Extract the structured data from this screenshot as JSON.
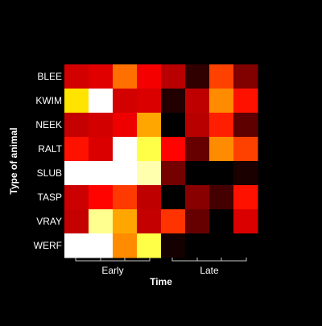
{
  "chart_data": {
    "type": "heatmap",
    "title": "",
    "xlabel": "Time",
    "ylabel": "Type of animal",
    "rows": [
      "BLEE",
      "KWIM",
      "NEEK",
      "RALT",
      "SLUB",
      "TASP",
      "VRAY",
      "WERF"
    ],
    "column_groups": [
      {
        "label": "Early",
        "columns": 4
      },
      {
        "label": "Late",
        "columns": 4
      }
    ],
    "colormap": "heat",
    "colorscale_range": [
      0,
      1
    ],
    "values": [
      [
        0.31,
        0.33,
        0.54,
        0.36,
        0.27,
        0.07,
        0.47,
        0.19
      ],
      [
        0.71,
        1.0,
        0.31,
        0.32,
        0.05,
        0.28,
        0.58,
        0.4
      ],
      [
        0.29,
        0.31,
        0.35,
        0.62,
        0.0,
        0.27,
        0.42,
        0.14
      ],
      [
        0.4,
        0.32,
        1.0,
        0.82,
        0.38,
        0.15,
        0.58,
        0.47
      ],
      [
        1.0,
        1.0,
        1.0,
        0.92,
        0.17,
        0.0,
        0.0,
        0.04
      ],
      [
        0.3,
        0.38,
        0.46,
        0.28,
        0.0,
        0.2,
        0.1,
        0.4
      ],
      [
        0.29,
        0.89,
        0.62,
        0.29,
        0.45,
        0.15,
        0.0,
        0.32
      ],
      [
        1.0,
        1.0,
        0.58,
        0.82,
        0.03,
        0.0,
        0.0,
        0.0
      ]
    ]
  }
}
